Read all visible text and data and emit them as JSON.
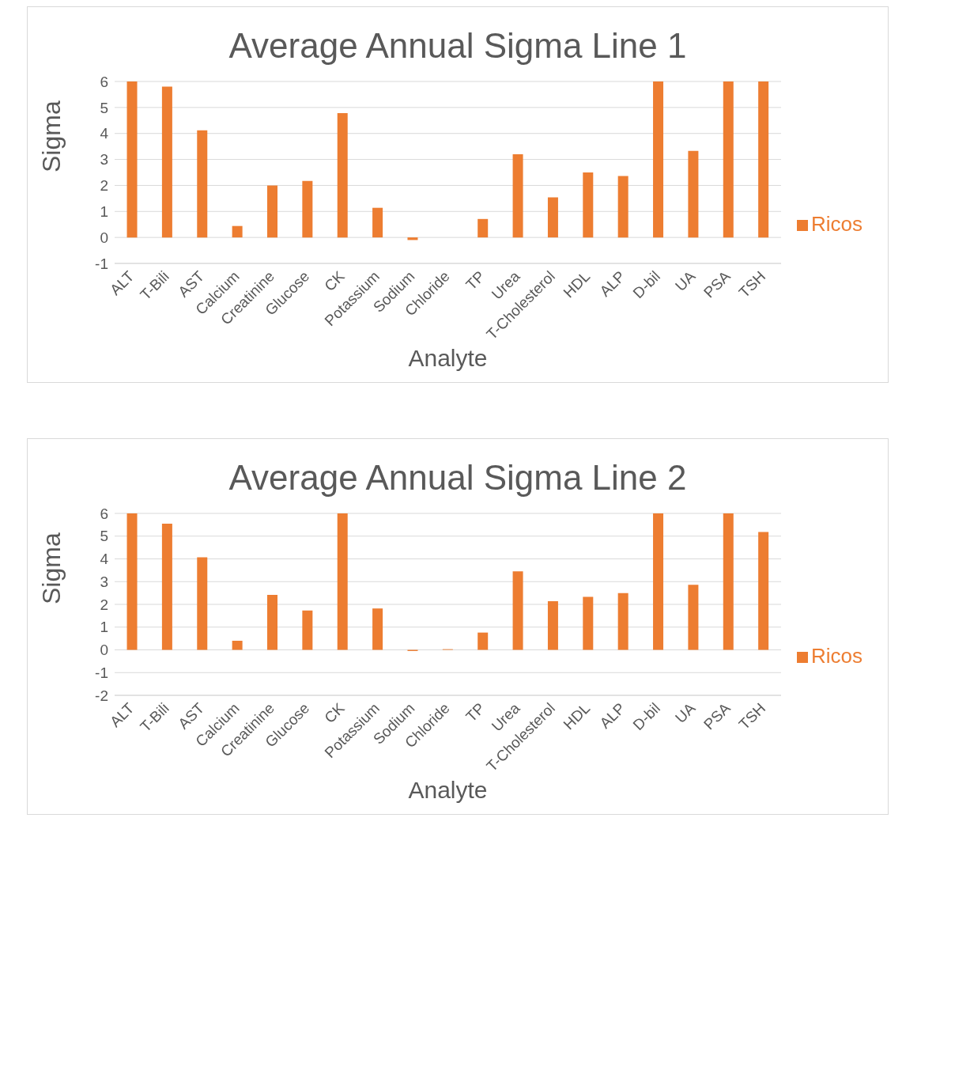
{
  "chart_data": [
    {
      "type": "bar",
      "title": "Average Annual Sigma Line 1",
      "xlabel": "Analyte",
      "ylabel": "Sigma",
      "categories": [
        "ALT",
        "T-Bili",
        "AST",
        "Calcium",
        "Creatinine",
        "Glucose",
        "CK",
        "Potassium",
        "Sodium",
        "Chloride",
        "TP",
        "Urea",
        "T-Cholesterol",
        "HDL",
        "ALP",
        "D-bil",
        "UA",
        "PSA",
        "TSH"
      ],
      "series": [
        {
          "name": "Ricos",
          "color": "#ed7d31",
          "values": [
            6,
            5.8,
            4.12,
            0.44,
            2.0,
            2.17,
            4.78,
            1.14,
            -0.1,
            0,
            0.71,
            3.2,
            1.54,
            2.5,
            2.36,
            6,
            3.33,
            6,
            6
          ]
        }
      ],
      "ylim": [
        -1,
        6
      ],
      "yticks": [
        -1,
        0,
        1,
        2,
        3,
        4,
        5,
        6
      ],
      "grid": "y",
      "legend": "right"
    },
    {
      "type": "bar",
      "title": "Average Annual Sigma Line 2",
      "xlabel": "Analyte",
      "ylabel": "Sigma",
      "categories": [
        "ALT",
        "T-Bili",
        "AST",
        "Calcium",
        "Creatinine",
        "Glucose",
        "CK",
        "Potassium",
        "Sodium",
        "Chloride",
        "TP",
        "Urea",
        "T-Cholesterol",
        "HDL",
        "ALP",
        "D-bil",
        "UA",
        "PSA",
        "TSH"
      ],
      "series": [
        {
          "name": "Ricos",
          "color": "#ed7d31",
          "values": [
            6,
            5.55,
            4.07,
            0.4,
            2.42,
            1.73,
            6,
            1.82,
            -0.05,
            0.03,
            0.76,
            3.45,
            2.14,
            2.33,
            2.5,
            6,
            2.86,
            6,
            5.18
          ]
        }
      ],
      "ylim": [
        -2,
        6
      ],
      "yticks": [
        -2,
        -1,
        0,
        1,
        2,
        3,
        4,
        5,
        6
      ],
      "grid": "y",
      "legend": "right"
    }
  ]
}
